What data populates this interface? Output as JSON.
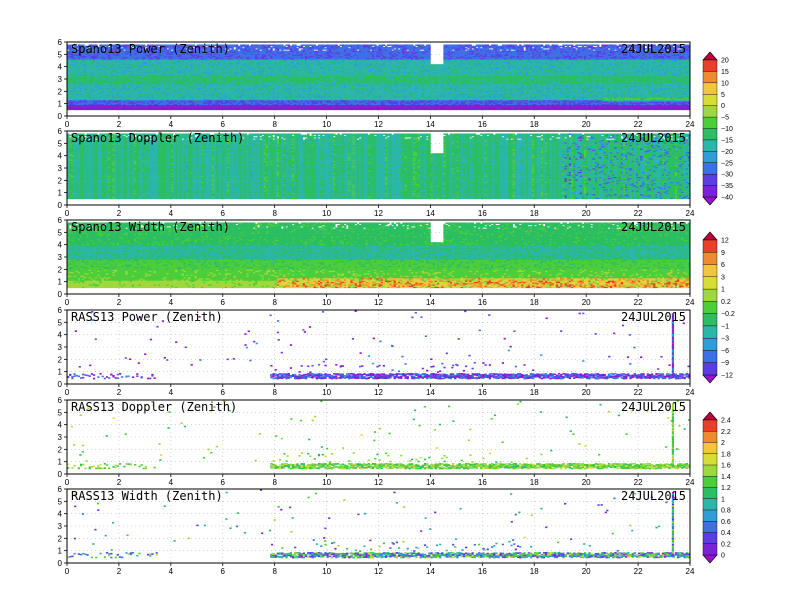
{
  "chart_data": [
    {
      "type": "heatmap",
      "title": "Spano13 Power (Zenith)",
      "date": "24JUL2015",
      "xlim": [
        0,
        24
      ],
      "ylim": [
        0,
        6
      ],
      "xticks": [
        "0",
        "2",
        "4",
        "6",
        "8",
        "10",
        "12",
        "14",
        "16",
        "18",
        "20",
        "22",
        "24"
      ],
      "yticks": [
        "0",
        "1",
        "2",
        "3",
        "4",
        "5",
        "6"
      ],
      "field": "power",
      "colorbar": 0,
      "coverage": {
        "bottom_km": 0.5,
        "top_km": 5.7,
        "gap_hours": [
          14.0,
          14.45
        ],
        "gap_below_km": 4.2
      },
      "bands": [
        {
          "y": [
            0.5,
            0.8
          ],
          "value": -37
        },
        {
          "y": [
            0.8,
            1.3
          ],
          "value": -28
        },
        {
          "y": [
            1.3,
            2.6
          ],
          "value": -17
        },
        {
          "y": [
            2.6,
            3.3
          ],
          "value": -13
        },
        {
          "y": [
            3.3,
            4.6
          ],
          "value": -17
        },
        {
          "y": [
            4.6,
            5.7
          ],
          "value": -27
        }
      ]
    },
    {
      "type": "heatmap",
      "title": "Spano13 Doppler (Zenith)",
      "date": "24JUL2015",
      "xlim": [
        0,
        24
      ],
      "ylim": [
        0,
        6
      ],
      "xticks": [
        "0",
        "2",
        "4",
        "6",
        "8",
        "10",
        "12",
        "14",
        "16",
        "18",
        "20",
        "22",
        "24"
      ],
      "yticks": [
        "0",
        "1",
        "2",
        "3",
        "4",
        "5",
        "6"
      ],
      "field": "doppler",
      "colorbar": 0,
      "coverage": {
        "bottom_km": 0.5,
        "top_km": 5.7,
        "gap_hours": [
          14.0,
          14.45
        ],
        "gap_below_km": 4.2
      },
      "bands": [
        {
          "y": [
            0.5,
            5.7
          ],
          "value": -14
        }
      ]
    },
    {
      "type": "heatmap",
      "title": "Spano13 Width (Zenith)",
      "date": "24JUL2015",
      "xlim": [
        0,
        24
      ],
      "ylim": [
        0,
        6
      ],
      "xticks": [
        "0",
        "2",
        "4",
        "6",
        "8",
        "10",
        "12",
        "14",
        "16",
        "18",
        "20",
        "22",
        "24"
      ],
      "yticks": [
        "0",
        "1",
        "2",
        "3",
        "4",
        "5",
        "6"
      ],
      "field": "width",
      "colorbar": 1,
      "coverage": {
        "bottom_km": 0.5,
        "top_km": 5.7,
        "gap_hours": [
          14.0,
          14.45
        ],
        "gap_below_km": 4.2
      },
      "bands": [
        {
          "y": [
            0.5,
            1.0
          ],
          "value": 1.5
        },
        {
          "y": [
            1.0,
            2.0
          ],
          "value": 0.4
        },
        {
          "y": [
            2.0,
            2.8
          ],
          "value": -0.5
        },
        {
          "y": [
            2.8,
            4.0
          ],
          "value": -3
        },
        {
          "y": [
            4.0,
            5.7
          ],
          "value": -1.5
        }
      ]
    },
    {
      "type": "scatter",
      "title": "RASS13 Power (Zenith)",
      "date": "24JUL2015",
      "xlim": [
        0,
        24
      ],
      "ylim": [
        0,
        6
      ],
      "xticks": [
        "0",
        "2",
        "4",
        "6",
        "8",
        "10",
        "12",
        "14",
        "16",
        "18",
        "20",
        "22",
        "24"
      ],
      "yticks": [
        "0",
        "1",
        "2",
        "3",
        "4",
        "5",
        "6"
      ],
      "field": "rass_power",
      "colorbar": 1,
      "main_band_km": [
        0.5,
        0.9
      ],
      "active_hours": [
        0,
        24
      ],
      "dense_after_hour": 7.8,
      "vertical_streak_hour": 23.3,
      "value_range": [
        -12,
        -6
      ]
    },
    {
      "type": "scatter",
      "title": "RASS13 Doppler (Zenith)",
      "date": "24JUL2015",
      "xlim": [
        0,
        24
      ],
      "ylim": [
        0,
        6
      ],
      "xticks": [
        "0",
        "2",
        "4",
        "6",
        "8",
        "10",
        "12",
        "14",
        "16",
        "18",
        "20",
        "22",
        "24"
      ],
      "yticks": [
        "0",
        "1",
        "2",
        "3",
        "4",
        "5",
        "6"
      ],
      "field": "rass_doppler",
      "colorbar": 2,
      "main_band_km": [
        0.5,
        0.9
      ],
      "active_hours": [
        0,
        24
      ],
      "dense_after_hour": 7.8,
      "vertical_streak_hour": 23.3,
      "value_range": [
        1.1,
        1.6
      ]
    },
    {
      "type": "scatter",
      "title": "RASS13 Width (Zenith)",
      "date": "24JUL2015",
      "xlim": [
        0,
        24
      ],
      "ylim": [
        0,
        6
      ],
      "xticks": [
        "0",
        "2",
        "4",
        "6",
        "8",
        "10",
        "12",
        "14",
        "16",
        "18",
        "20",
        "22",
        "24"
      ],
      "yticks": [
        "0",
        "1",
        "2",
        "3",
        "4",
        "5",
        "6"
      ],
      "field": "rass_width",
      "colorbar": 2,
      "main_band_km": [
        0.5,
        0.9
      ],
      "active_hours": [
        0,
        24
      ],
      "dense_after_hour": 7.8,
      "vertical_streak_hour": 23.3,
      "value_range": [
        0.2,
        1.6
      ]
    }
  ],
  "colorbars": [
    {
      "labels": [
        "20",
        "15",
        "10",
        "5",
        "0",
        "−5",
        "−10",
        "−15",
        "−20",
        "−25",
        "−30",
        "−35",
        "−40"
      ],
      "colors": [
        "#c0003a",
        "#e8402a",
        "#f08a2c",
        "#f2c63a",
        "#d7dc37",
        "#9ed83a",
        "#4ccd3a",
        "#2bbe62",
        "#2ab6a8",
        "#2f9ed6",
        "#3d6fe6",
        "#5a3ee4",
        "#7a22d6",
        "#9a0fd0"
      ]
    },
    {
      "labels": [
        "12",
        "9",
        "6",
        "3",
        "1",
        "0.2",
        "−0.2",
        "−1",
        "−3",
        "−6",
        "−9",
        "−12"
      ],
      "colors": [
        "#c0003a",
        "#e8402a",
        "#f08a2c",
        "#f2c63a",
        "#d7dc37",
        "#9ed83a",
        "#4ccd3a",
        "#2bbe62",
        "#2ab6a8",
        "#2f9ed6",
        "#3d6fe6",
        "#5a3ee4",
        "#9a0fd0"
      ]
    },
    {
      "labels": [
        "2.4",
        "2.2",
        "2",
        "1.8",
        "1.6",
        "1.4",
        "1.2",
        "1",
        "0.8",
        "0.6",
        "0.4",
        "0.2",
        "0"
      ],
      "colors": [
        "#c0003a",
        "#e8402a",
        "#f08a2c",
        "#f2c63a",
        "#d7dc37",
        "#9ed83a",
        "#4ccd3a",
        "#2bbe62",
        "#2ab6a8",
        "#2f9ed6",
        "#3d6fe6",
        "#5a3ee4",
        "#7a22d6",
        "#9a0fd0"
      ]
    }
  ]
}
